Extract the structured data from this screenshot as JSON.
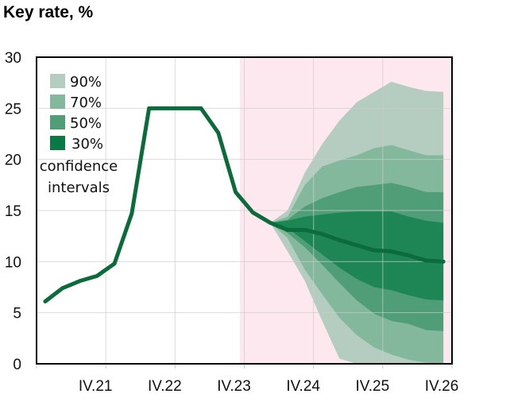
{
  "chart_data": {
    "type": "area",
    "title": "Key rate, %",
    "xlabel": "",
    "ylabel": "",
    "ylim": [
      0,
      30
    ],
    "yticks": [
      "0",
      "5",
      "10",
      "15",
      "20",
      "25",
      "30"
    ],
    "x": [
      "I.21",
      "II.21",
      "III.21",
      "IV.21",
      "I.22",
      "II.22",
      "III.22",
      "IV.22",
      "I.23",
      "II.23",
      "III.23",
      "IV.23",
      "I.24",
      "II.24",
      "III.24",
      "IV.24",
      "I.25",
      "II.25",
      "III.25",
      "IV.25",
      "I.26",
      "II.26",
      "III.26",
      "IV.26"
    ],
    "xtick_labels": [
      "IV.21",
      "IV.22",
      "IV.23",
      "IV.24",
      "IV.25",
      "IV.26"
    ],
    "grid": true,
    "forecast_shading_from": "I.24",
    "colors": {
      "line": "#0b6b3a",
      "band90": "#b4cdc0",
      "band70": "#84b89c",
      "band50": "#4f9e78",
      "band30": "#1e8655",
      "forecast_bg": "#fde8ef",
      "legend30": "#0a7a45"
    },
    "series": [
      {
        "name": "Key rate",
        "values": [
          6.1,
          7.4,
          8.1,
          8.6,
          9.8,
          14.7,
          25,
          25,
          25,
          25,
          22.6,
          16.8,
          14.8,
          13.8,
          13.1,
          13.1,
          12.7,
          12.1,
          11.6,
          11.1,
          11.0,
          10.6,
          10.1,
          10.0
        ]
      }
    ],
    "bands_start_index": 13,
    "bands": [
      {
        "name": "90%",
        "upper": [
          13.8,
          15.0,
          18.7,
          21.5,
          23.8,
          25.6,
          26.6,
          27.6,
          27.1,
          26.7,
          26.6
        ],
        "lower": [
          13.8,
          11.0,
          8.1,
          4.2,
          0.5,
          0,
          0,
          0,
          0,
          0,
          0
        ]
      },
      {
        "name": "70%",
        "upper": [
          13.8,
          14.4,
          17.5,
          19.3,
          19.9,
          20.4,
          21.1,
          21.4,
          20.9,
          20.4,
          20.4
        ],
        "lower": [
          13.8,
          12.3,
          9.2,
          6.8,
          4.5,
          2.8,
          1.6,
          0.9,
          0.4,
          0.1,
          0
        ]
      },
      {
        "name": "50%",
        "upper": [
          13.8,
          14.1,
          15.4,
          16.2,
          16.8,
          17.3,
          17.5,
          17.7,
          17.3,
          16.8,
          16.8
        ],
        "lower": [
          13.8,
          12.8,
          11.4,
          9.7,
          7.9,
          6.2,
          4.9,
          4.2,
          3.9,
          3.3,
          3.2
        ]
      },
      {
        "name": "30%",
        "upper": [
          13.8,
          14.0,
          14.4,
          14.6,
          14.8,
          14.9,
          14.9,
          14.9,
          14.4,
          14.0,
          13.8
        ],
        "lower": [
          13.8,
          13.3,
          12.0,
          10.7,
          9.4,
          8.3,
          7.5,
          7.2,
          6.7,
          6.3,
          6.2
        ]
      }
    ],
    "legend": {
      "items": [
        "90%",
        "70%",
        "50%",
        "30%"
      ],
      "caption_line1": "confidence",
      "caption_line2": "intervals",
      "placement": "top-left"
    }
  }
}
